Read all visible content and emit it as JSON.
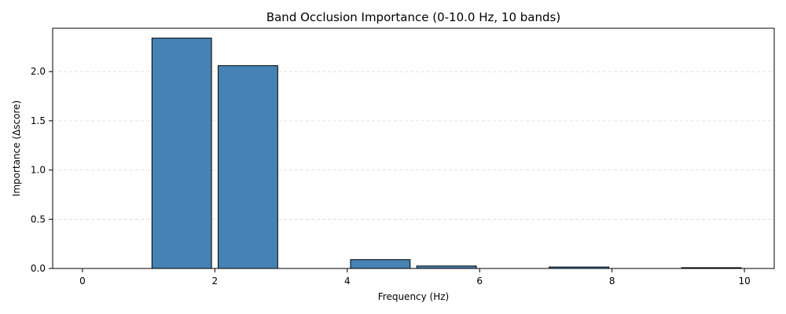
{
  "chart_data": {
    "type": "bar",
    "title": "Band Occlusion Importance (0-10.0 Hz, 10 bands)",
    "xlabel": "Frequency (Hz)",
    "ylabel": "Importance (Δscore)",
    "bar_color": "#4682b4",
    "edge_color": "#000000",
    "grid": "y-dashed",
    "xlim": [
      -0.45,
      10.45
    ],
    "ylim": [
      0,
      2.44
    ],
    "xticks": [
      0,
      2,
      4,
      6,
      8,
      10
    ],
    "xtick_labels": [
      "0",
      "2",
      "4",
      "6",
      "8",
      "10"
    ],
    "yticks": [
      0.0,
      0.5,
      1.0,
      1.5,
      2.0
    ],
    "ytick_labels": [
      "0.0",
      "0.5",
      "1.0",
      "1.5",
      "2.0"
    ],
    "bands": [
      {
        "x": 0.5,
        "width": 0.9,
        "value": 0.0
      },
      {
        "x": 1.5,
        "width": 0.9,
        "value": 2.34
      },
      {
        "x": 2.5,
        "width": 0.9,
        "value": 2.06
      },
      {
        "x": 3.5,
        "width": 0.9,
        "value": 0.0
      },
      {
        "x": 4.5,
        "width": 0.9,
        "value": 0.09
      },
      {
        "x": 5.5,
        "width": 0.9,
        "value": 0.025
      },
      {
        "x": 6.5,
        "width": 0.9,
        "value": 0.0
      },
      {
        "x": 7.5,
        "width": 0.9,
        "value": 0.015
      },
      {
        "x": 8.5,
        "width": 0.9,
        "value": 0.0
      },
      {
        "x": 9.5,
        "width": 0.9,
        "value": 0.008
      }
    ]
  }
}
